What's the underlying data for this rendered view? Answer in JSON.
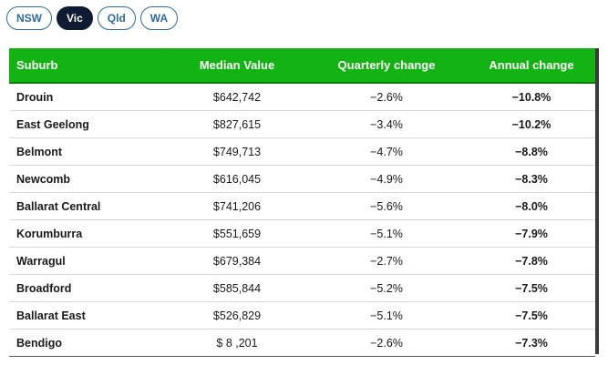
{
  "tabs": [
    {
      "label": "NSW",
      "active": false
    },
    {
      "label": "Vic",
      "active": true
    },
    {
      "label": "Qld",
      "active": false
    },
    {
      "label": "WA",
      "active": false
    }
  ],
  "table": {
    "headers": [
      "Suburb",
      "Median Value",
      "Quarterly change",
      "Annual change"
    ],
    "rows": [
      {
        "suburb": "Drouin",
        "median": "$642,742",
        "quarterly": "−2.6%",
        "annual": "−10.8%"
      },
      {
        "suburb": "East Geelong",
        "median": "$827,615",
        "quarterly": "−3.4%",
        "annual": "−10.2%"
      },
      {
        "suburb": "Belmont",
        "median": "$749,713",
        "quarterly": "−4.7%",
        "annual": "−8.8%"
      },
      {
        "suburb": "Newcomb",
        "median": "$616,045",
        "quarterly": "−4.9%",
        "annual": "−8.3%"
      },
      {
        "suburb": "Ballarat Central",
        "median": "$741,206",
        "quarterly": "−5.6%",
        "annual": "−8.0%"
      },
      {
        "suburb": "Korumburra",
        "median": "$551,659",
        "quarterly": "−5.1%",
        "annual": "−7.9%"
      },
      {
        "suburb": "Warragul",
        "median": "$679,384",
        "quarterly": "−2.7%",
        "annual": "−7.8%"
      },
      {
        "suburb": "Broadford",
        "median": "$585,844",
        "quarterly": "−5.2%",
        "annual": "−7.5%"
      },
      {
        "suburb": "Ballarat East",
        "median": "$526,829",
        "quarterly": "−5.1%",
        "annual": "−7.5%"
      },
      {
        "suburb": "Bendigo",
        "median": "$ 8 ,201",
        "quarterly": "−2.6%",
        "annual": "−7.3%"
      }
    ]
  },
  "colors": {
    "header_bg": "#13b313",
    "tab_active_bg": "#0f1a33",
    "tab_border": "#2f6aa0"
  }
}
